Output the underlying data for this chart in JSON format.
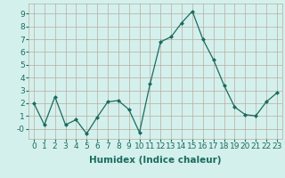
{
  "x": [
    0,
    1,
    2,
    3,
    4,
    5,
    6,
    7,
    8,
    9,
    10,
    11,
    12,
    13,
    14,
    15,
    16,
    17,
    18,
    19,
    20,
    21,
    22,
    23
  ],
  "y": [
    2.0,
    0.3,
    2.5,
    0.3,
    0.7,
    -0.4,
    0.9,
    2.1,
    2.2,
    1.5,
    -0.3,
    3.5,
    6.8,
    7.2,
    8.3,
    9.2,
    7.0,
    5.4,
    3.4,
    1.7,
    1.1,
    1.0,
    2.1,
    2.8
  ],
  "line_color": "#1a6b5e",
  "marker": "D",
  "marker_size": 2,
  "bg_color": "#d4f0ec",
  "grid_color": "#b8aca0",
  "xlabel": "Humidex (Indice chaleur)",
  "ylim": [
    -0.8,
    9.8
  ],
  "xlim": [
    -0.5,
    23.5
  ],
  "yticks": [
    0,
    1,
    2,
    3,
    4,
    5,
    6,
    7,
    8,
    9
  ],
  "ytick_labels": [
    "-0",
    "1",
    "2",
    "3",
    "4",
    "5",
    "6",
    "7",
    "8",
    "9"
  ],
  "xticks": [
    0,
    1,
    2,
    3,
    4,
    5,
    6,
    7,
    8,
    9,
    10,
    11,
    12,
    13,
    14,
    15,
    16,
    17,
    18,
    19,
    20,
    21,
    22,
    23
  ],
  "xlabel_fontsize": 7.5,
  "tick_fontsize": 6.5
}
